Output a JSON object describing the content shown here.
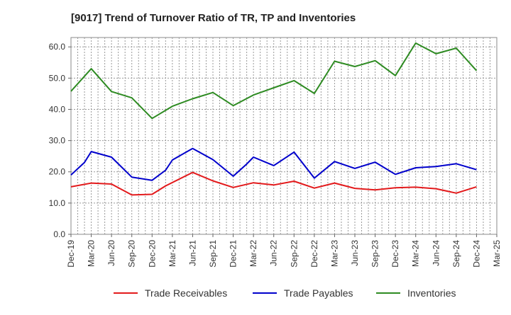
{
  "chart_data": {
    "type": "line",
    "title": "[9017]  Trend of Turnover Ratio of TR, TP and Inventories",
    "xlabel": "",
    "ylabel": "",
    "ylim": [
      0,
      63
    ],
    "y_ticks": [
      "0.0",
      "10.0",
      "20.0",
      "30.0",
      "40.0",
      "50.0",
      "60.0"
    ],
    "x_tick_labels": [
      "Dec-19",
      "Mar-20",
      "Jun-20",
      "Sep-20",
      "Dec-20",
      "Mar-21",
      "Jun-21",
      "Sep-21",
      "Dec-21",
      "Mar-22",
      "Jun-22",
      "Sep-22",
      "Dec-22",
      "Mar-23",
      "Jun-23",
      "Sep-23",
      "Dec-23",
      "Mar-24",
      "Jun-24",
      "Sep-24",
      "Dec-24",
      "Mar-25"
    ],
    "x_months": [
      "Dec-19",
      "Jan-20",
      "Feb-20",
      "Mar-20",
      "Apr-20",
      "May-20",
      "Jun-20",
      "Jul-20",
      "Aug-20",
      "Sep-20",
      "Oct-20",
      "Nov-20",
      "Dec-20",
      "Jan-21",
      "Feb-21",
      "Mar-21",
      "Apr-21",
      "May-21",
      "Jun-21",
      "Jul-21",
      "Aug-21",
      "Sep-21",
      "Oct-21",
      "Nov-21",
      "Dec-21",
      "Jan-22",
      "Feb-22",
      "Mar-22",
      "Apr-22",
      "May-22",
      "Jun-22",
      "Jul-22",
      "Aug-22",
      "Sep-22",
      "Oct-22",
      "Nov-22",
      "Dec-22",
      "Jan-23",
      "Feb-23",
      "Mar-23",
      "Apr-23",
      "May-23",
      "Jun-23",
      "Jul-23",
      "Aug-23",
      "Sep-23",
      "Oct-23",
      "Nov-23",
      "Dec-23",
      "Jan-24",
      "Feb-24",
      "Mar-24",
      "Apr-24",
      "May-24",
      "Jun-24",
      "Jul-24",
      "Aug-24",
      "Sep-24",
      "Oct-24",
      "Nov-24",
      "Dec-24",
      "Jan-25",
      "Feb-25",
      "Mar-25"
    ],
    "grid": true,
    "legend_position": "bottom",
    "series": [
      {
        "name": "Trade Receivables",
        "color": "#e31a1c",
        "x": [
          "Dec-19",
          "Mar-20",
          "Jun-20",
          "Sep-20",
          "Dec-20",
          "Feb-21",
          "Jun-21",
          "Sep-21",
          "Dec-21",
          "Mar-22",
          "Jun-22",
          "Sep-22",
          "Dec-22",
          "Mar-23",
          "Jun-23",
          "Sep-23",
          "Dec-23",
          "Mar-24",
          "Jun-24",
          "Sep-24",
          "Dec-24"
        ],
        "values": [
          15.2,
          16.4,
          16.1,
          12.6,
          12.8,
          15.5,
          19.8,
          17.1,
          15.0,
          16.5,
          15.8,
          17.0,
          14.8,
          16.4,
          14.7,
          14.2,
          14.9,
          15.1,
          14.6,
          13.2,
          15.2
        ]
      },
      {
        "name": "Trade Payables",
        "color": "#0000cc",
        "x": [
          "Dec-19",
          "Feb-20",
          "Mar-20",
          "Jun-20",
          "Sep-20",
          "Dec-20",
          "Feb-21",
          "Mar-21",
          "Jun-21",
          "Sep-21",
          "Dec-21",
          "Feb-22",
          "Mar-22",
          "Jun-22",
          "Sep-22",
          "Dec-22",
          "Mar-23",
          "Jun-23",
          "Sep-23",
          "Dec-23",
          "Mar-24",
          "Jun-24",
          "Sep-24",
          "Dec-24"
        ],
        "values": [
          19.0,
          23.0,
          26.5,
          24.7,
          18.3,
          17.3,
          20.5,
          23.8,
          27.5,
          23.9,
          18.6,
          22.5,
          24.7,
          22.0,
          26.3,
          18.0,
          23.3,
          21.1,
          23.1,
          19.2,
          21.3,
          21.7,
          22.6,
          20.7
        ]
      },
      {
        "name": "Inventories",
        "color": "#2e8b22",
        "x": [
          "Dec-19",
          "Mar-20",
          "Jun-20",
          "Sep-20",
          "Dec-20",
          "Mar-21",
          "Jun-21",
          "Sep-21",
          "Dec-21",
          "Mar-22",
          "Jun-22",
          "Sep-22",
          "Dec-22",
          "Mar-23",
          "Jun-23",
          "Sep-23",
          "Dec-23",
          "Mar-24",
          "Jun-24",
          "Sep-24",
          "Dec-24"
        ],
        "values": [
          45.8,
          53.0,
          45.7,
          43.7,
          37.1,
          41.0,
          43.4,
          45.4,
          41.2,
          44.6,
          46.9,
          49.2,
          45.1,
          55.4,
          53.7,
          55.6,
          50.8,
          61.2,
          57.8,
          59.6,
          52.4
        ]
      }
    ]
  }
}
